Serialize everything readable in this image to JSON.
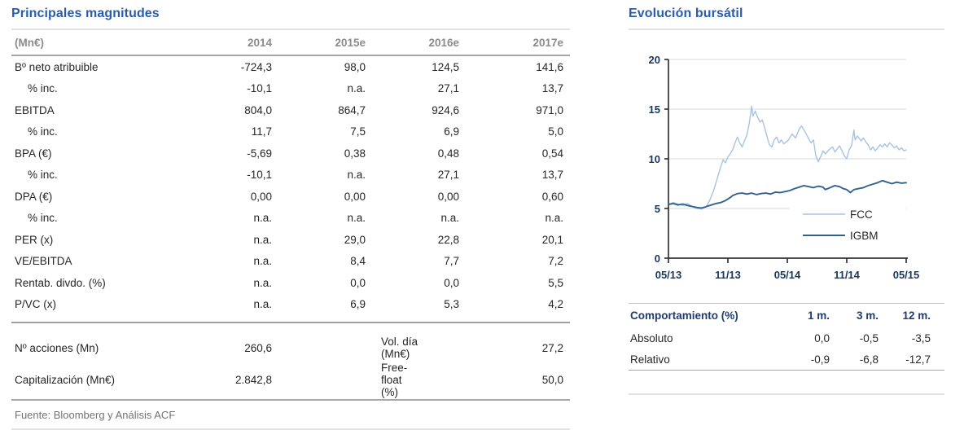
{
  "left": {
    "title": "Principales magnitudes",
    "table": {
      "header": [
        "(Mn€)",
        "2014",
        "2015e",
        "2016e",
        "2017e"
      ],
      "rows": [
        {
          "label": "Bº neto atribuible",
          "indent": false,
          "values": [
            "-724,3",
            "98,0",
            "124,5",
            "141,6"
          ]
        },
        {
          "label": "% inc.",
          "indent": true,
          "values": [
            "-10,1",
            "n.a.",
            "27,1",
            "13,7"
          ]
        },
        {
          "label": "EBITDA",
          "indent": false,
          "values": [
            "804,0",
            "864,7",
            "924,6",
            "971,0"
          ]
        },
        {
          "label": "% inc.",
          "indent": true,
          "values": [
            "11,7",
            "7,5",
            "6,9",
            "5,0"
          ]
        },
        {
          "label": "BPA (€)",
          "indent": false,
          "values": [
            "-5,69",
            "0,38",
            "0,48",
            "0,54"
          ]
        },
        {
          "label": "% inc.",
          "indent": true,
          "values": [
            "-10,1",
            "n.a.",
            "27,1",
            "13,7"
          ]
        },
        {
          "label": "DPA (€)",
          "indent": false,
          "values": [
            "0,00",
            "0,00",
            "0,00",
            "0,60"
          ]
        },
        {
          "label": "% inc.",
          "indent": true,
          "values": [
            "n.a.",
            "n.a.",
            "n.a.",
            "n.a."
          ]
        },
        {
          "label": "PER (x)",
          "indent": false,
          "values": [
            "n.a.",
            "29,0",
            "22,8",
            "20,1"
          ]
        },
        {
          "label": "VE/EBITDA",
          "indent": false,
          "values": [
            "n.a.",
            "8,4",
            "7,7",
            "7,2"
          ]
        },
        {
          "label": "Rentab. divdo. (%)",
          "indent": false,
          "values": [
            "n.a.",
            "0,0",
            "0,0",
            "5,5"
          ]
        },
        {
          "label": "P/VC (x)",
          "indent": false,
          "values": [
            "n.a.",
            "6,9",
            "5,3",
            "4,2"
          ]
        }
      ]
    },
    "summary": [
      {
        "label1": "Nº acciones (Mn)",
        "value1": "260,6",
        "label2": "Vol. día (Mn€)",
        "value2": "27,2"
      },
      {
        "label1": "Capitalización (Mn€)",
        "value1": "2.842,8",
        "label2": "Free-float (%)",
        "value2": "50,0"
      }
    ],
    "source": "Fuente: Bloomberg y Análisis ACF"
  },
  "right": {
    "title": "Evolución bursátil",
    "performance": {
      "header": [
        "Comportamiento (%)",
        "1 m.",
        "3 m.",
        "12 m."
      ],
      "rows": [
        {
          "label": "Absoluto",
          "values": [
            "0,0",
            "-0,5",
            "-3,5"
          ]
        },
        {
          "label": "Relativo",
          "values": [
            "-0,9",
            "-6,8",
            "-12,7"
          ]
        }
      ]
    }
  },
  "chart_data": {
    "type": "line",
    "title": "Evolución bursátil",
    "ylim": [
      0,
      20
    ],
    "yticks": [
      0,
      5,
      10,
      15,
      20
    ],
    "xticks": [
      "05/13",
      "11/13",
      "05/14",
      "11/14",
      "05/15"
    ],
    "grid": true,
    "legend_position": "inside-right",
    "series": [
      {
        "name": "FCC",
        "color": "#A7C3E3",
        "width": 1.4,
        "points": [
          [
            0,
            5.4
          ],
          [
            0.02,
            5.6
          ],
          [
            0.04,
            5.45
          ],
          [
            0.06,
            5.3
          ],
          [
            0.08,
            5.5
          ],
          [
            0.1,
            5.2
          ],
          [
            0.12,
            5.0
          ],
          [
            0.14,
            4.95
          ],
          [
            0.16,
            5.2
          ],
          [
            0.175,
            5.9
          ],
          [
            0.19,
            6.8
          ],
          [
            0.2,
            7.6
          ],
          [
            0.21,
            8.4
          ],
          [
            0.22,
            9.2
          ],
          [
            0.23,
            9.9
          ],
          [
            0.24,
            9.6
          ],
          [
            0.25,
            10.2
          ],
          [
            0.26,
            10.5
          ],
          [
            0.27,
            10.9
          ],
          [
            0.28,
            11.6
          ],
          [
            0.29,
            12.2
          ],
          [
            0.3,
            11.6
          ],
          [
            0.31,
            11.2
          ],
          [
            0.32,
            11.8
          ],
          [
            0.33,
            12.4
          ],
          [
            0.34,
            13.6
          ],
          [
            0.35,
            15.3
          ],
          [
            0.355,
            14.3
          ],
          [
            0.365,
            14.8
          ],
          [
            0.375,
            14.2
          ],
          [
            0.385,
            13.7
          ],
          [
            0.395,
            13.9
          ],
          [
            0.405,
            13.1
          ],
          [
            0.415,
            12.2
          ],
          [
            0.425,
            11.4
          ],
          [
            0.435,
            11.2
          ],
          [
            0.445,
            11.9
          ],
          [
            0.455,
            12.2
          ],
          [
            0.465,
            11.6
          ],
          [
            0.475,
            11.9
          ],
          [
            0.485,
            11.5
          ],
          [
            0.495,
            11.7
          ],
          [
            0.505,
            11.9
          ],
          [
            0.52,
            12.5
          ],
          [
            0.535,
            12.1
          ],
          [
            0.55,
            13.0
          ],
          [
            0.56,
            13.3
          ],
          [
            0.575,
            12.7
          ],
          [
            0.59,
            12.0
          ],
          [
            0.6,
            11.6
          ],
          [
            0.61,
            11.9
          ],
          [
            0.62,
            10.3
          ],
          [
            0.63,
            9.7
          ],
          [
            0.64,
            10.2
          ],
          [
            0.65,
            10.8
          ],
          [
            0.66,
            10.5
          ],
          [
            0.675,
            10.9
          ],
          [
            0.69,
            11.2
          ],
          [
            0.7,
            10.7
          ],
          [
            0.71,
            11.0
          ],
          [
            0.72,
            11.3
          ],
          [
            0.73,
            10.8
          ],
          [
            0.74,
            10.3
          ],
          [
            0.75,
            10.0
          ],
          [
            0.76,
            10.9
          ],
          [
            0.77,
            11.3
          ],
          [
            0.78,
            12.9
          ],
          [
            0.785,
            11.9
          ],
          [
            0.795,
            12.3
          ],
          [
            0.81,
            11.8
          ],
          [
            0.82,
            12.1
          ],
          [
            0.83,
            11.7
          ],
          [
            0.84,
            11.4
          ],
          [
            0.85,
            10.9
          ],
          [
            0.86,
            11.2
          ],
          [
            0.87,
            10.8
          ],
          [
            0.88,
            11.1
          ],
          [
            0.89,
            11.4
          ],
          [
            0.9,
            11.2
          ],
          [
            0.91,
            11.5
          ],
          [
            0.92,
            11.2
          ],
          [
            0.93,
            11.6
          ],
          [
            0.94,
            11.4
          ],
          [
            0.95,
            11.1
          ],
          [
            0.96,
            11.3
          ],
          [
            0.97,
            10.9
          ],
          [
            0.98,
            11.1
          ],
          [
            0.99,
            10.8
          ],
          [
            1.0,
            10.9
          ]
        ]
      },
      {
        "name": "IGBM",
        "color": "#35618F",
        "width": 1.9,
        "points": [
          [
            0,
            5.4
          ],
          [
            0.02,
            5.5
          ],
          [
            0.04,
            5.35
          ],
          [
            0.06,
            5.45
          ],
          [
            0.08,
            5.3
          ],
          [
            0.1,
            5.2
          ],
          [
            0.12,
            5.1
          ],
          [
            0.14,
            5.05
          ],
          [
            0.16,
            5.2
          ],
          [
            0.18,
            5.35
          ],
          [
            0.2,
            5.5
          ],
          [
            0.22,
            5.6
          ],
          [
            0.24,
            5.8
          ],
          [
            0.26,
            6.1
          ],
          [
            0.27,
            6.3
          ],
          [
            0.29,
            6.5
          ],
          [
            0.31,
            6.55
          ],
          [
            0.33,
            6.45
          ],
          [
            0.35,
            6.55
          ],
          [
            0.37,
            6.4
          ],
          [
            0.39,
            6.5
          ],
          [
            0.41,
            6.55
          ],
          [
            0.43,
            6.45
          ],
          [
            0.45,
            6.65
          ],
          [
            0.47,
            6.6
          ],
          [
            0.49,
            6.7
          ],
          [
            0.51,
            6.8
          ],
          [
            0.53,
            7.0
          ],
          [
            0.55,
            7.15
          ],
          [
            0.57,
            7.3
          ],
          [
            0.59,
            7.2
          ],
          [
            0.61,
            7.1
          ],
          [
            0.63,
            7.25
          ],
          [
            0.65,
            7.15
          ],
          [
            0.66,
            6.9
          ],
          [
            0.68,
            7.1
          ],
          [
            0.7,
            7.3
          ],
          [
            0.72,
            7.2
          ],
          [
            0.735,
            7.0
          ],
          [
            0.75,
            6.9
          ],
          [
            0.765,
            6.6
          ],
          [
            0.78,
            6.9
          ],
          [
            0.8,
            7.0
          ],
          [
            0.82,
            7.1
          ],
          [
            0.84,
            7.3
          ],
          [
            0.86,
            7.45
          ],
          [
            0.88,
            7.6
          ],
          [
            0.9,
            7.8
          ],
          [
            0.92,
            7.65
          ],
          [
            0.94,
            7.5
          ],
          [
            0.96,
            7.65
          ],
          [
            0.98,
            7.55
          ],
          [
            1.0,
            7.6
          ]
        ]
      }
    ]
  },
  "colors": {
    "title_blue": "#2B5CA9",
    "header_gray": "#8C8C8C",
    "table_navy": "#1F3C73",
    "axis_navy": "#17375E",
    "fcc_line": "#A7C3E3",
    "igbm_line": "#35618F",
    "rule_light": "#E2E2E2",
    "rule_medium": "#A0A0A0",
    "body_text": "#262626",
    "source_gray": "#737373"
  }
}
